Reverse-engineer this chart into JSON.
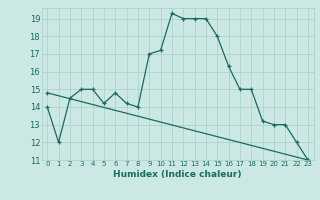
{
  "title": "",
  "xlabel": "Humidex (Indice chaleur)",
  "ylabel": "",
  "background_color": "#cce8e4",
  "grid_color": "#aacfcb",
  "line_color": "#1a6b5e",
  "xlim": [
    -0.5,
    23.5
  ],
  "ylim": [
    11,
    19.6
  ],
  "yticks": [
    11,
    12,
    13,
    14,
    15,
    16,
    17,
    18,
    19
  ],
  "xticks": [
    0,
    1,
    2,
    3,
    4,
    5,
    6,
    7,
    8,
    9,
    10,
    11,
    12,
    13,
    14,
    15,
    16,
    17,
    18,
    19,
    20,
    21,
    22,
    23
  ],
  "curve1_x": [
    0,
    1,
    2,
    3,
    4,
    5,
    6,
    7,
    8,
    9,
    10,
    11,
    12,
    13,
    14,
    15,
    16,
    17,
    18,
    19,
    20,
    21,
    22,
    23
  ],
  "curve1_y": [
    14.0,
    12.0,
    14.5,
    15.0,
    15.0,
    14.2,
    14.8,
    14.2,
    14.0,
    17.0,
    17.2,
    19.3,
    19.0,
    19.0,
    19.0,
    18.0,
    16.3,
    15.0,
    15.0,
    13.2,
    13.0,
    13.0,
    12.0,
    11.0
  ],
  "curve2_x": [
    0,
    23
  ],
  "curve2_y": [
    14.8,
    11.0
  ],
  "marker": "+"
}
